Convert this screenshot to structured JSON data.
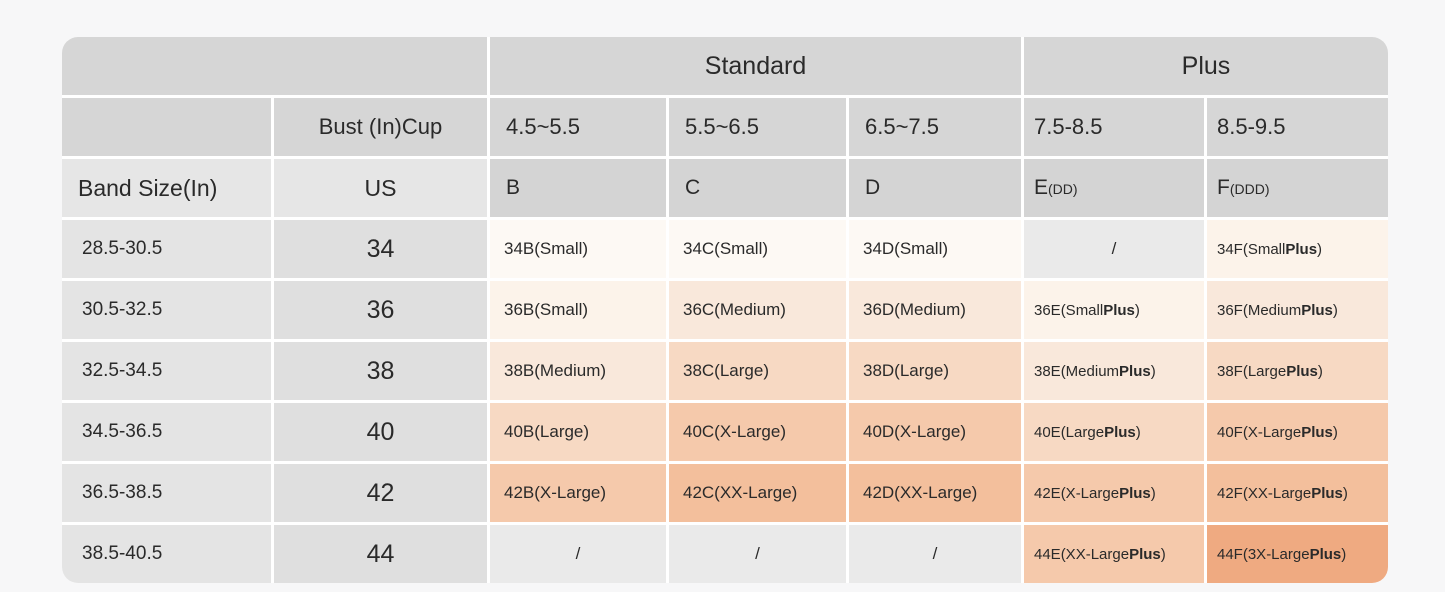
{
  "colors": {
    "gap": "#ffffff",
    "header_gray": "#d6d6d6",
    "cup_header_gray": "#d4d4d4",
    "subheader_gray": "#e6e6e6",
    "band_col": "#e4e4e4",
    "us_col": "#dfdfdf",
    "na": "#eaeaea",
    "s0": "#fdf9f4",
    "s1": "#fcf3ea",
    "s2": "#f9e8db",
    "s3": "#f7d9c3",
    "s4": "#f5c9ab",
    "s5": "#f3bf9c",
    "s6": "#efaa81",
    "text": "#2a2a2a",
    "page_bg": "#f7f7f8"
  },
  "chart_data": {
    "type": "table",
    "group_standard": "Standard",
    "group_plus": "Plus",
    "bust_cup_header": "Bust (In)Cup",
    "bust_ranges": [
      "4.5~5.5",
      "5.5~6.5",
      "6.5~7.5",
      "7.5-8.5",
      "8.5-9.5"
    ],
    "band_size_header": "Band Size(In)",
    "us_header": "US",
    "cups": [
      {
        "main": "B",
        "sub": ""
      },
      {
        "main": "C",
        "sub": ""
      },
      {
        "main": "D",
        "sub": ""
      },
      {
        "main": "E",
        "sub": "(DD)"
      },
      {
        "main": "F",
        "sub": "(DDD)"
      }
    ],
    "rows": [
      {
        "band": "28.5-30.5",
        "us": "34",
        "cells": [
          {
            "text": "34B(Small)",
            "shade": "s0"
          },
          {
            "text": "34C(Small)",
            "shade": "s0"
          },
          {
            "text": "34D(Small)",
            "shade": "s0"
          },
          {
            "text": "/",
            "shade": "na",
            "center": true
          },
          {
            "text": "34F(Small ",
            "bold": "Plus",
            "after": ")",
            "shade": "s1"
          }
        ]
      },
      {
        "band": "30.5-32.5",
        "us": "36",
        "cells": [
          {
            "text": "36B(Small)",
            "shade": "s1"
          },
          {
            "text": "36C(Medium)",
            "shade": "s2"
          },
          {
            "text": "36D(Medium)",
            "shade": "s2"
          },
          {
            "text": "36E(Small ",
            "bold": "Plus",
            "after": ")",
            "shade": "s1"
          },
          {
            "text": "36F(Medium ",
            "bold": "Plus",
            "after": ")",
            "shade": "s2"
          }
        ]
      },
      {
        "band": "32.5-34.5",
        "us": "38",
        "cells": [
          {
            "text": "38B(Medium)",
            "shade": "s2"
          },
          {
            "text": "38C(Large)",
            "shade": "s3"
          },
          {
            "text": "38D(Large)",
            "shade": "s3"
          },
          {
            "text": "38E(Medium ",
            "bold": "Plus",
            "after": ")",
            "shade": "s2"
          },
          {
            "text": "38F(Large ",
            "bold": "Plus",
            "after": ")",
            "shade": "s3"
          }
        ]
      },
      {
        "band": "34.5-36.5",
        "us": "40",
        "cells": [
          {
            "text": "40B(Large)",
            "shade": "s3"
          },
          {
            "text": "40C(X-Large)",
            "shade": "s4"
          },
          {
            "text": "40D(X-Large)",
            "shade": "s4"
          },
          {
            "text": "40E(Large ",
            "bold": "Plus",
            "after": ")",
            "shade": "s3"
          },
          {
            "text": "40F(X-Large ",
            "bold": "Plus",
            "after": ")",
            "shade": "s4"
          }
        ]
      },
      {
        "band": "36.5-38.5",
        "us": "42",
        "cells": [
          {
            "text": "42B(X-Large)",
            "shade": "s4"
          },
          {
            "text": "42C(XX-Large)",
            "shade": "s5"
          },
          {
            "text": "42D(XX-Large)",
            "shade": "s5"
          },
          {
            "text": "42E(X-Large ",
            "bold": "Plus",
            "after": ")",
            "shade": "s4"
          },
          {
            "text": "42F(XX-Large ",
            "bold": "Plus",
            "after": ")",
            "shade": "s5"
          }
        ]
      },
      {
        "band": "38.5-40.5",
        "us": "44",
        "cells": [
          {
            "text": "/",
            "shade": "na",
            "center": true
          },
          {
            "text": "/",
            "shade": "na",
            "center": true
          },
          {
            "text": "/",
            "shade": "na",
            "center": true
          },
          {
            "text": "44E(XX-Large ",
            "bold": "Plus",
            "after": ")",
            "shade": "s4"
          },
          {
            "text": "44F(3X-Large ",
            "bold": "Plus",
            "after": ")",
            "shade": "s6"
          }
        ]
      }
    ]
  }
}
